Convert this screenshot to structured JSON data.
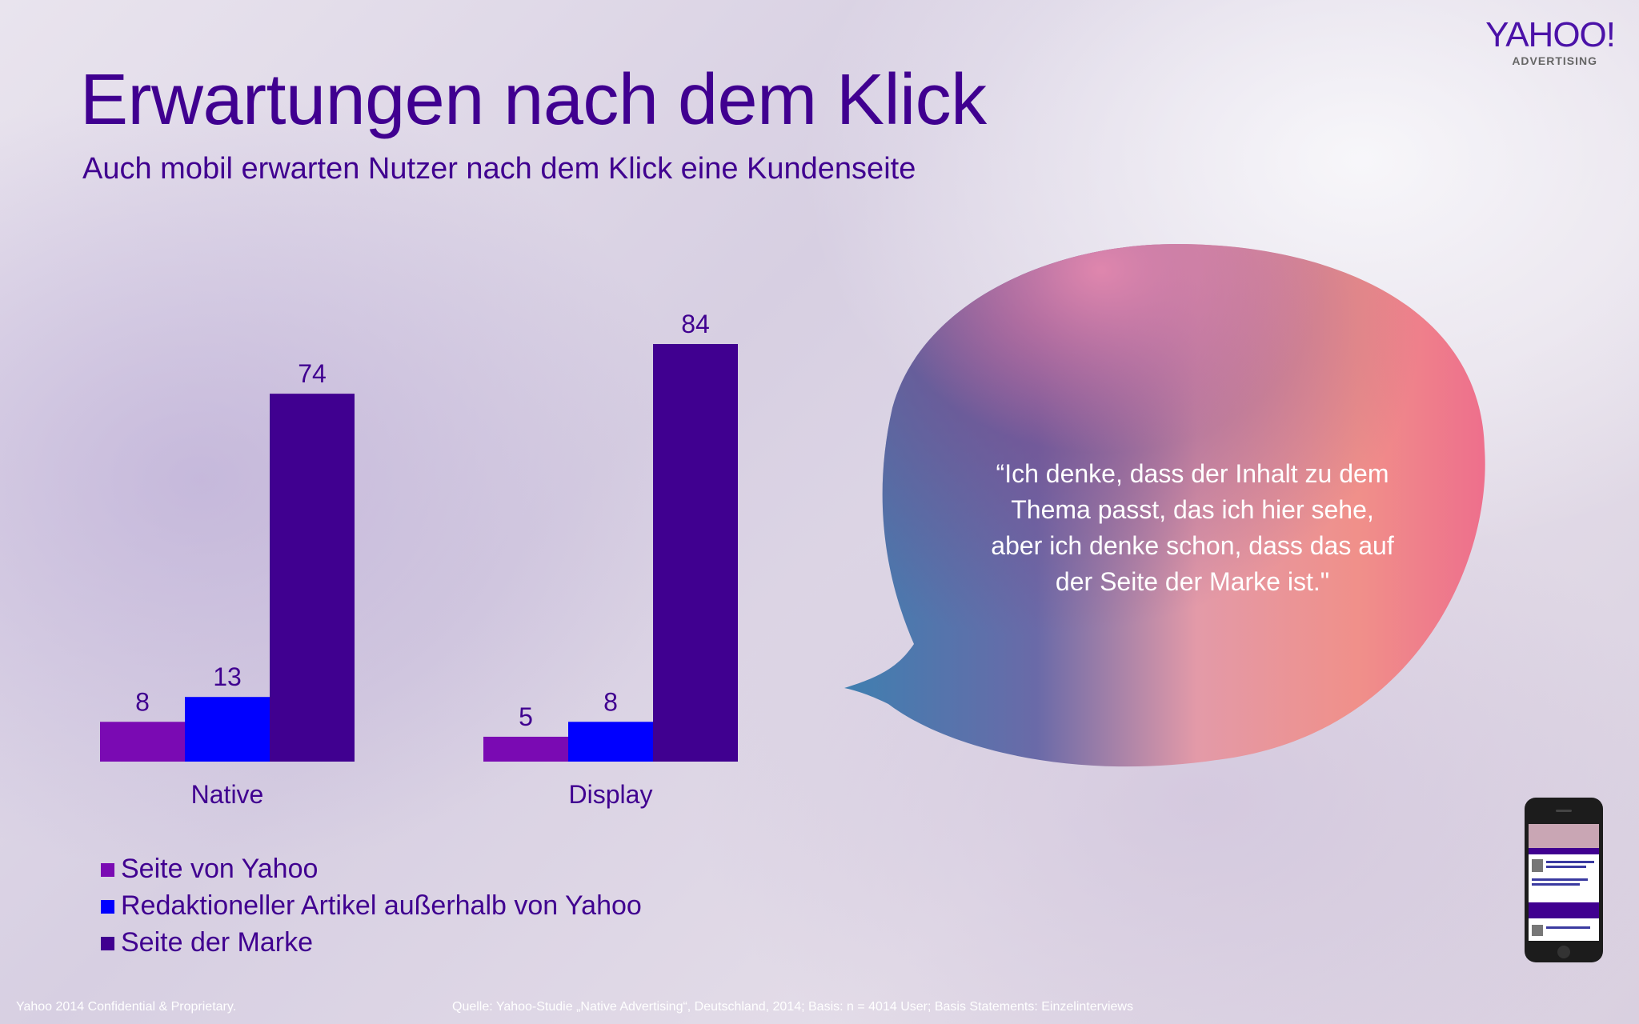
{
  "logo": {
    "brand": "YAHOO!",
    "sub": "ADVERTISING"
  },
  "title": "Erwartungen nach dem Klick",
  "subtitle": "Auch mobil erwarten Nutzer nach dem Klick eine Kundenseite",
  "chart_data": {
    "type": "bar",
    "title": "",
    "xlabel": "",
    "ylabel": "",
    "ylim": [
      0,
      84
    ],
    "grid": false,
    "legend_position": "bottom-left",
    "categories": [
      "Native",
      "Display"
    ],
    "series": [
      {
        "name": "Seite von Yahoo",
        "color": "#7a0ab3",
        "values": [
          8,
          5
        ]
      },
      {
        "name": "Redaktioneller Artikel außerhalb von Yahoo",
        "color": "#0000ff",
        "values": [
          13,
          8
        ]
      },
      {
        "name": "Seite der Marke",
        "color": "#400090",
        "values": [
          74,
          84
        ]
      }
    ]
  },
  "quote": {
    "lines": [
      "“Ich denke, dass der Inhalt zu dem",
      "Thema passt, das ich hier sehe,",
      "aber ich denke schon, dass das auf",
      "der Seite der Marke ist.\""
    ]
  },
  "footer": {
    "left": "Yahoo 2014  Confidential & Proprietary.",
    "source": "Quelle: Yahoo-Studie „Native Advertising“, Deutschland, 2014; Basis: n = 4014 User; Basis Statements: Einzelinterviews"
  },
  "colors": {
    "title": "#400090",
    "text_white": "#ffffff"
  },
  "icons": {
    "phone": "smartphone-icon"
  }
}
